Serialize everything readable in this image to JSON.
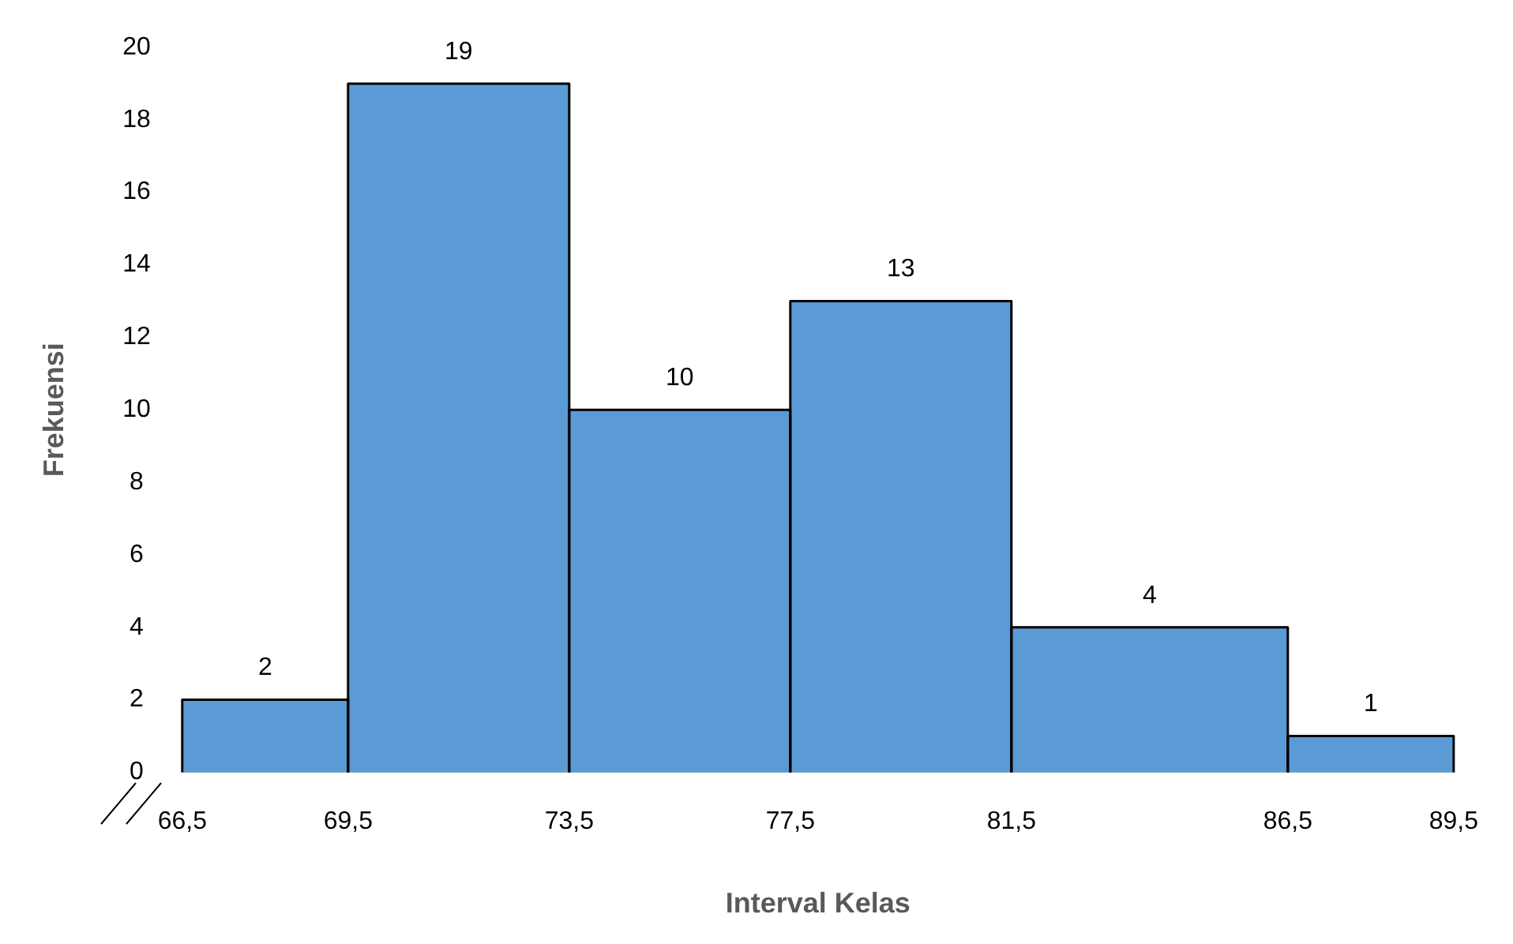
{
  "chart_data": {
    "type": "histogram",
    "xlabel": "Interval Kelas",
    "ylabel": "Frekuensi",
    "bins": [
      66.5,
      69.5,
      73.5,
      77.5,
      81.5,
      86.5,
      89.5
    ],
    "values": [
      2,
      19,
      10,
      13,
      4,
      1
    ],
    "color": "#5b9bd5",
    "xticks": [
      {
        "value": 66.5,
        "label": "66,5"
      },
      {
        "value": 69.5,
        "label": "69,5"
      },
      {
        "value": 73.5,
        "label": "73,5"
      },
      {
        "value": 77.5,
        "label": "77,5"
      },
      {
        "value": 81.5,
        "label": "81,5"
      },
      {
        "value": 86.5,
        "label": "86,5"
      },
      {
        "value": 89.5,
        "label": "89,5"
      }
    ],
    "xlim": [
      66.5,
      89.5
    ],
    "ylim": [
      0,
      20
    ],
    "yticks": [
      0,
      2,
      4,
      6,
      8,
      10,
      12,
      14,
      16,
      18,
      20
    ],
    "grid": false,
    "legend": false,
    "data_labels": true
  }
}
